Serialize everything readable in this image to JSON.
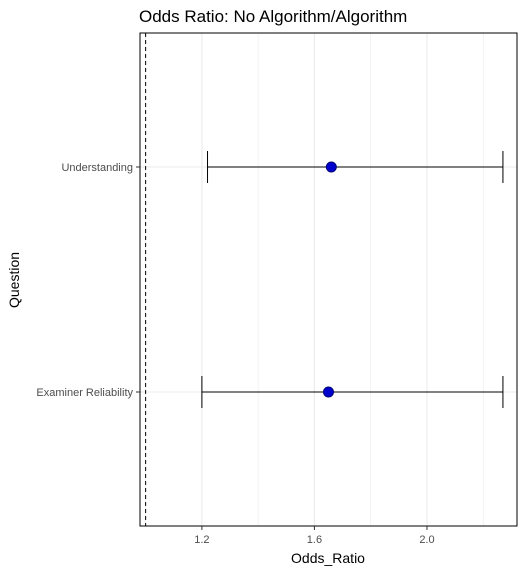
{
  "chart_data": {
    "type": "forest",
    "title": "Odds Ratio: No Algorithm/Algorithm",
    "xlabel": "Odds_Ratio",
    "ylabel": "Question",
    "xlim": [
      0.98,
      2.32
    ],
    "x_ticks": [
      1.2,
      1.6,
      2.0
    ],
    "x_tick_labels": [
      "1.2",
      "1.6",
      "2.0"
    ],
    "reference_line": 1.0,
    "grid": true,
    "rows": [
      {
        "label": "Understanding",
        "estimate": 1.66,
        "lower": 1.22,
        "upper": 2.27
      },
      {
        "label": "Examiner Reliability",
        "estimate": 1.65,
        "lower": 1.2,
        "upper": 2.27
      }
    ],
    "colors": {
      "point": "#0000cc",
      "point_stroke": "#00007a",
      "error_bar": "#000000",
      "reference_line": "#000000",
      "grid": "#ebebeb",
      "panel_border": "#000000"
    }
  }
}
